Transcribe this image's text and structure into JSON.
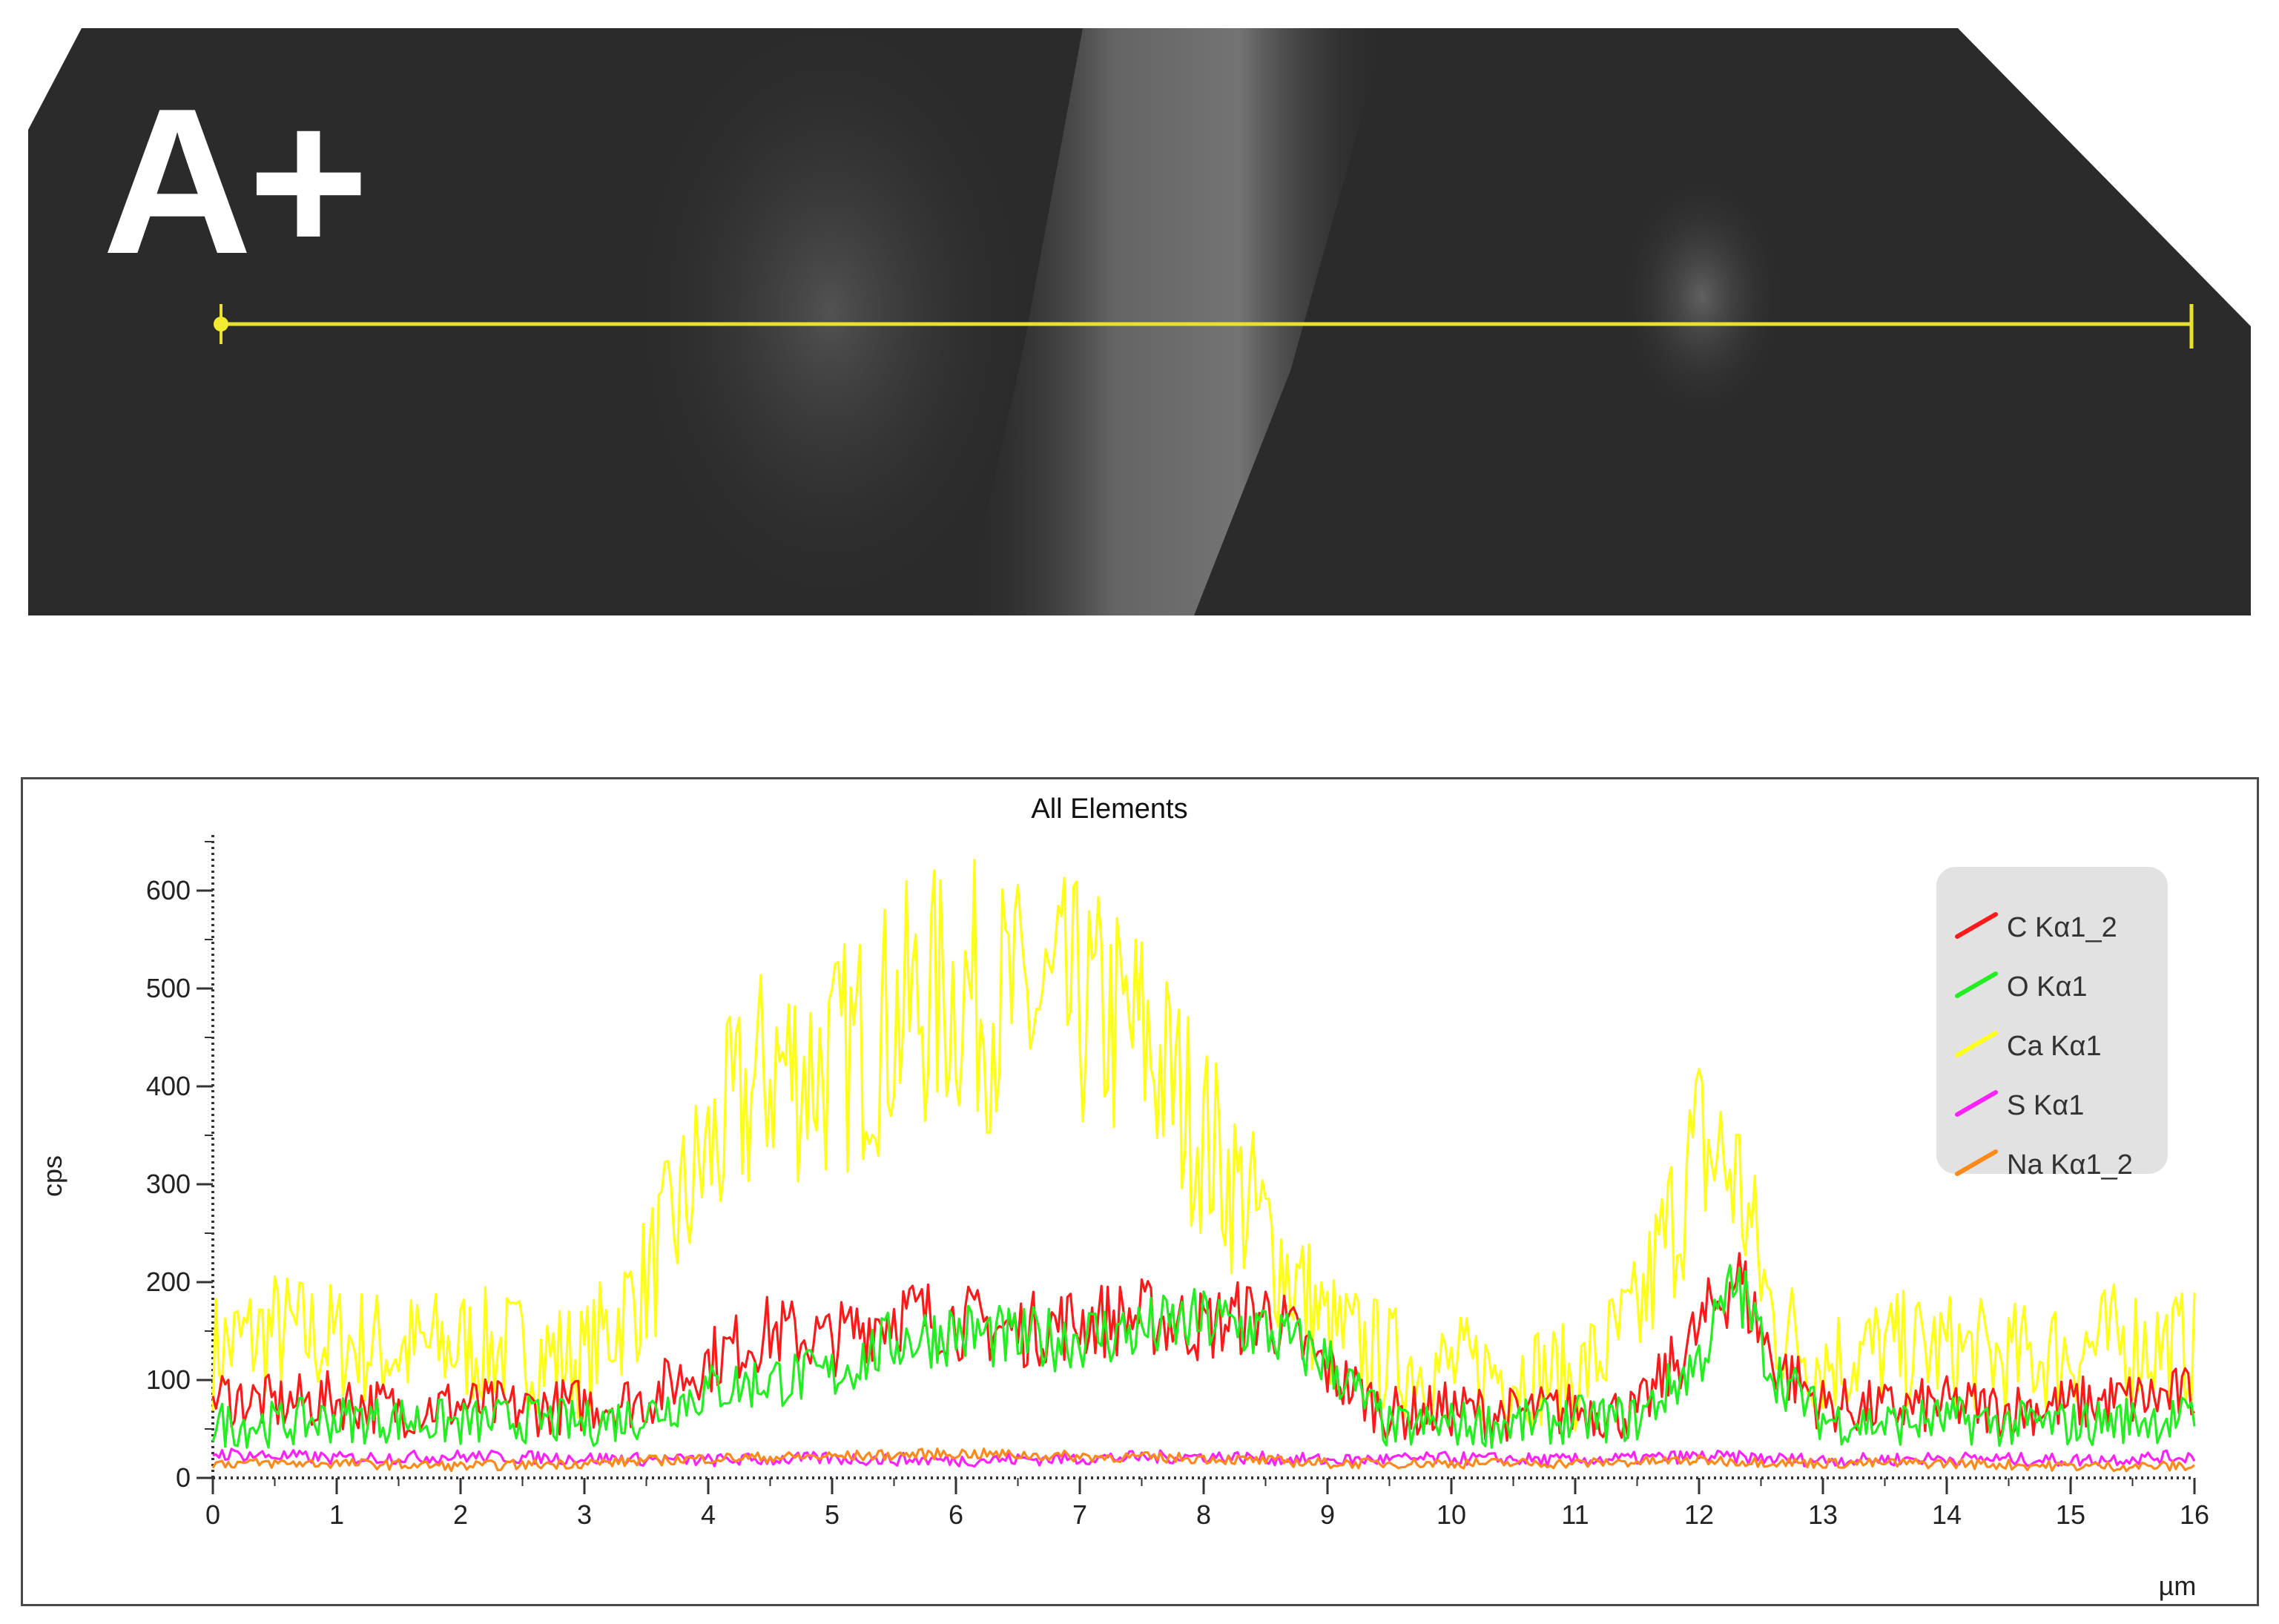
{
  "panel": {
    "label": "A+"
  },
  "scan_line": {
    "color": "#e8e030"
  },
  "chart_data": {
    "type": "line",
    "title": "All Elements",
    "xlabel": "µm",
    "ylabel": "cps",
    "xlim": [
      0,
      16
    ],
    "ylim": [
      0,
      650
    ],
    "x_ticks": [
      "0",
      "1",
      "2",
      "3",
      "4",
      "5",
      "6",
      "7",
      "8",
      "9",
      "10",
      "11",
      "12",
      "13",
      "14",
      "15",
      "16"
    ],
    "y_ticks": [
      "0",
      "100",
      "200",
      "300",
      "400",
      "500",
      "600"
    ],
    "grid": false,
    "legend_position": "top-right",
    "series": [
      {
        "name": "C Kα1_2",
        "color": "#ff1a1a",
        "x": [
          0,
          0.5,
          1,
          1.5,
          2,
          2.5,
          3,
          3.5,
          4,
          4.5,
          5,
          5.5,
          6,
          6.5,
          7,
          7.5,
          8,
          8.5,
          9,
          9.5,
          10,
          10.5,
          11,
          11.5,
          12,
          12.3,
          12.6,
          13,
          13.5,
          14,
          14.5,
          15,
          15.5,
          16
        ],
        "y": [
          85,
          75,
          80,
          70,
          75,
          70,
          75,
          80,
          120,
          150,
          140,
          170,
          160,
          150,
          160,
          165,
          155,
          170,
          110,
          65,
          70,
          65,
          70,
          65,
          150,
          210,
          120,
          75,
          70,
          75,
          70,
          75,
          80,
          85
        ]
      },
      {
        "name": "O Kα1",
        "color": "#22ee22",
        "x": [
          0,
          0.5,
          1,
          1.5,
          2,
          2.5,
          3,
          3.5,
          4,
          4.5,
          5,
          5.5,
          6,
          6.5,
          7,
          7.5,
          8,
          8.5,
          9,
          9.5,
          10,
          10.5,
          11,
          11.5,
          12,
          12.3,
          12.6,
          13,
          13.5,
          14,
          14.5,
          15,
          15.5,
          16
        ],
        "y": [
          55,
          55,
          60,
          60,
          55,
          60,
          55,
          65,
          90,
          100,
          105,
          140,
          150,
          140,
          145,
          150,
          160,
          150,
          120,
          50,
          55,
          55,
          60,
          60,
          120,
          200,
          110,
          60,
          55,
          60,
          55,
          55,
          60,
          60
        ]
      },
      {
        "name": "Ca Kα1",
        "color": "#ffff1a",
        "x": [
          0,
          0.5,
          1,
          1.5,
          2,
          2.5,
          3,
          3.5,
          4,
          4.5,
          5,
          5.5,
          6,
          6.5,
          7,
          7.5,
          8,
          8.5,
          9,
          9.5,
          10,
          10.5,
          11,
          11.5,
          12,
          12.3,
          12.6,
          13,
          13.5,
          14,
          14.5,
          15,
          15.5,
          16
        ],
        "y": [
          130,
          150,
          140,
          130,
          135,
          130,
          120,
          200,
          330,
          420,
          420,
          470,
          500,
          480,
          480,
          450,
          350,
          250,
          150,
          120,
          110,
          110,
          100,
          160,
          340,
          310,
          160,
          120,
          130,
          130,
          120,
          130,
          140,
          130
        ]
      },
      {
        "name": "S Kα1",
        "color": "#ff22ff",
        "x": [
          0,
          1,
          2,
          3,
          4,
          5,
          6,
          7,
          8,
          9,
          10,
          11,
          12,
          13,
          14,
          15,
          16
        ],
        "y": [
          25,
          20,
          22,
          20,
          18,
          20,
          18,
          20,
          22,
          18,
          20,
          18,
          22,
          18,
          20,
          18,
          22
        ]
      },
      {
        "name": "Na Kα1_2",
        "color": "#ff8a1a",
        "x": [
          0,
          1,
          2,
          3,
          4,
          5,
          6,
          7,
          8,
          9,
          10,
          11,
          12,
          13,
          14,
          15,
          16
        ],
        "y": [
          15,
          15,
          12,
          15,
          20,
          22,
          25,
          22,
          20,
          15,
          15,
          15,
          18,
          15,
          15,
          12,
          12
        ]
      }
    ]
  }
}
